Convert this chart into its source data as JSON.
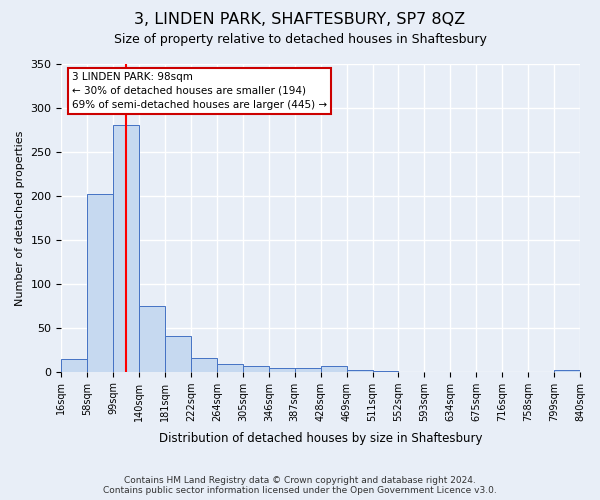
{
  "title": "3, LINDEN PARK, SHAFTESBURY, SP7 8QZ",
  "subtitle": "Size of property relative to detached houses in Shaftesbury",
  "xlabel": "Distribution of detached houses by size in Shaftesbury",
  "ylabel": "Number of detached properties",
  "footnote1": "Contains HM Land Registry data © Crown copyright and database right 2024.",
  "footnote2": "Contains public sector information licensed under the Open Government Licence v3.0.",
  "bin_labels": [
    "16sqm",
    "58sqm",
    "99sqm",
    "140sqm",
    "181sqm",
    "222sqm",
    "264sqm",
    "305sqm",
    "346sqm",
    "387sqm",
    "428sqm",
    "469sqm",
    "511sqm",
    "552sqm",
    "593sqm",
    "634sqm",
    "675sqm",
    "716sqm",
    "758sqm",
    "799sqm",
    "840sqm"
  ],
  "bar_values": [
    14,
    202,
    281,
    75,
    41,
    15,
    9,
    6,
    4,
    4,
    6,
    2,
    1,
    0,
    0,
    0,
    0,
    0,
    0,
    2
  ],
  "bar_color": "#c6d9f0",
  "bar_edge_color": "#4472c4",
  "red_line_x": 2.0,
  "annotation_line1": "3 LINDEN PARK: 98sqm",
  "annotation_line2": "← 30% of detached houses are smaller (194)",
  "annotation_line3": "69% of semi-detached houses are larger (445) →",
  "annotation_box_color": "#ffffff",
  "annotation_box_edge": "#cc0000",
  "ylim": [
    0,
    350
  ],
  "yticks": [
    0,
    50,
    100,
    150,
    200,
    250,
    300,
    350
  ],
  "background_color": "#e8eef7",
  "plot_background": "#e8eef7",
  "grid_color": "#ffffff"
}
